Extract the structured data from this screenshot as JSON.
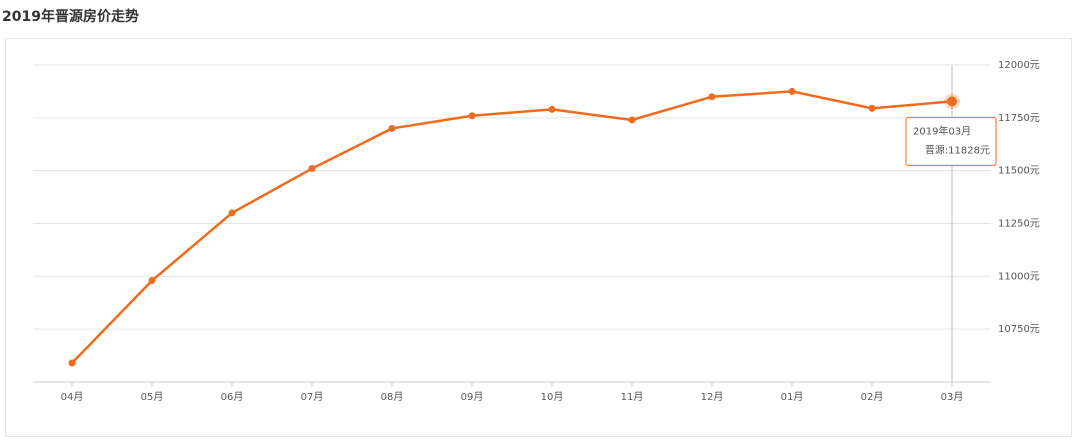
{
  "chart_data": {
    "type": "line",
    "title": "2019年晋源房价走势",
    "categories": [
      "04月",
      "05月",
      "06月",
      "07月",
      "08月",
      "09月",
      "10月",
      "11月",
      "12月",
      "01月",
      "02月",
      "03月"
    ],
    "values": [
      10590,
      10980,
      11300,
      11510,
      11700,
      11760,
      11790,
      11740,
      11850,
      11875,
      11795,
      11828
    ],
    "color": "#f26b1d",
    "ylim": [
      10500,
      12000
    ],
    "yticks": [
      {
        "value": 10750,
        "label": "10750元"
      },
      {
        "value": 11000,
        "label": "11000元"
      },
      {
        "value": 11250,
        "label": "11250元"
      },
      {
        "value": 11500,
        "label": "11500元"
      },
      {
        "value": 11750,
        "label": "11750元"
      },
      {
        "value": 12000,
        "label": "12000元"
      }
    ],
    "grid": true,
    "tooltip": {
      "title": "2019年03月",
      "text": "晋源:11828元"
    }
  }
}
